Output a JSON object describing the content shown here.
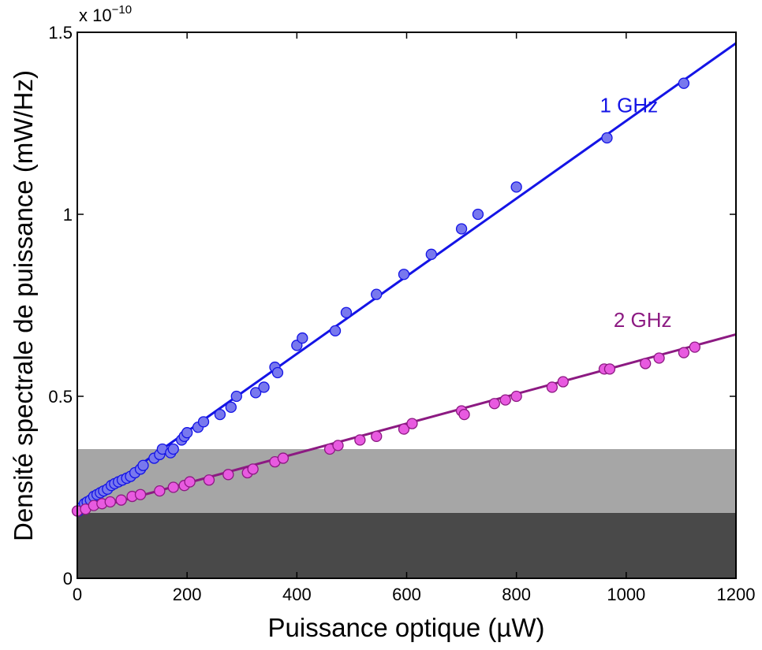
{
  "chart_data": {
    "type": "scatter",
    "xlabel": "Puissance optique (µW)",
    "ylabel": "Densité spectrale de puissance (mW/Hz)",
    "y_multiplier": "x 10",
    "y_multiplier_exponent": "−10",
    "xlim": [
      0,
      1200
    ],
    "ylim": [
      0,
      1.5
    ],
    "x_ticks": [
      0,
      200,
      400,
      600,
      800,
      1000,
      1200
    ],
    "x_tick_labels": [
      "0",
      "200",
      "400",
      "600",
      "800",
      "1000",
      "1200"
    ],
    "y_ticks": [
      0,
      0.5,
      1,
      1.5
    ],
    "y_tick_labels": [
      "0",
      "0.5",
      "1",
      "1.5"
    ],
    "grid": false,
    "background_bands": [
      {
        "y0": 0,
        "y1": 0.18,
        "color": "#494949"
      },
      {
        "y0": 0.18,
        "y1": 0.355,
        "color": "#a6a6a6"
      }
    ],
    "series": [
      {
        "name": "1 GHz",
        "color": "#1414e6",
        "marker_fill": "#7878ee",
        "points": [
          [
            2,
            0.185
          ],
          [
            8,
            0.195
          ],
          [
            13,
            0.205
          ],
          [
            18,
            0.21
          ],
          [
            24,
            0.215
          ],
          [
            30,
            0.225
          ],
          [
            36,
            0.23
          ],
          [
            42,
            0.235
          ],
          [
            48,
            0.24
          ],
          [
            55,
            0.245
          ],
          [
            62,
            0.255
          ],
          [
            68,
            0.26
          ],
          [
            75,
            0.265
          ],
          [
            82,
            0.27
          ],
          [
            90,
            0.275
          ],
          [
            97,
            0.28
          ],
          [
            105,
            0.29
          ],
          [
            115,
            0.3
          ],
          [
            120,
            0.31
          ],
          [
            140,
            0.33
          ],
          [
            150,
            0.34
          ],
          [
            155,
            0.355
          ],
          [
            170,
            0.345
          ],
          [
            175,
            0.355
          ],
          [
            190,
            0.38
          ],
          [
            195,
            0.39
          ],
          [
            200,
            0.4
          ],
          [
            220,
            0.415
          ],
          [
            230,
            0.43
          ],
          [
            260,
            0.45
          ],
          [
            280,
            0.47
          ],
          [
            290,
            0.5
          ],
          [
            325,
            0.51
          ],
          [
            340,
            0.525
          ],
          [
            360,
            0.58
          ],
          [
            365,
            0.565
          ],
          [
            400,
            0.64
          ],
          [
            410,
            0.66
          ],
          [
            470,
            0.68
          ],
          [
            490,
            0.73
          ],
          [
            545,
            0.78
          ],
          [
            595,
            0.835
          ],
          [
            645,
            0.89
          ],
          [
            700,
            0.96
          ],
          [
            730,
            1.0
          ],
          [
            800,
            1.075
          ],
          [
            965,
            1.21
          ],
          [
            1105,
            1.36
          ]
        ],
        "fit": [
          [
            0,
            0.19
          ],
          [
            1200,
            1.47
          ]
        ]
      },
      {
        "name": "2 GHz",
        "color": "#8c1a82",
        "marker_fill": "#e85ae0",
        "points": [
          [
            0,
            0.185
          ],
          [
            15,
            0.19
          ],
          [
            30,
            0.2
          ],
          [
            45,
            0.205
          ],
          [
            60,
            0.21
          ],
          [
            80,
            0.215
          ],
          [
            100,
            0.225
          ],
          [
            115,
            0.23
          ],
          [
            150,
            0.24
          ],
          [
            175,
            0.25
          ],
          [
            195,
            0.255
          ],
          [
            205,
            0.265
          ],
          [
            240,
            0.27
          ],
          [
            275,
            0.285
          ],
          [
            310,
            0.29
          ],
          [
            320,
            0.3
          ],
          [
            360,
            0.32
          ],
          [
            375,
            0.33
          ],
          [
            460,
            0.355
          ],
          [
            475,
            0.365
          ],
          [
            515,
            0.38
          ],
          [
            545,
            0.39
          ],
          [
            595,
            0.41
          ],
          [
            610,
            0.425
          ],
          [
            700,
            0.46
          ],
          [
            705,
            0.45
          ],
          [
            760,
            0.48
          ],
          [
            780,
            0.49
          ],
          [
            800,
            0.5
          ],
          [
            865,
            0.525
          ],
          [
            885,
            0.54
          ],
          [
            960,
            0.575
          ],
          [
            970,
            0.575
          ],
          [
            1035,
            0.59
          ],
          [
            1060,
            0.605
          ],
          [
            1105,
            0.62
          ],
          [
            1125,
            0.635
          ]
        ],
        "fit": [
          [
            0,
            0.18
          ],
          [
            1200,
            0.67
          ]
        ]
      }
    ]
  }
}
